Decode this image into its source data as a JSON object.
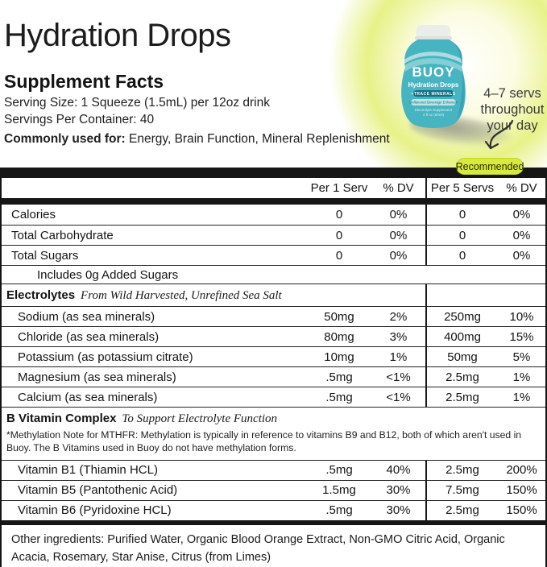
{
  "header": {
    "title": "Hydration Drops",
    "facts_heading": "Supplement Facts",
    "serving_size": "Serving Size: 1 Squeeze (1.5mL) per 12oz drink",
    "servings_per_container": "Servings Per Container: 40",
    "commonly_used_label": "Commonly used for:",
    "commonly_used_value": " Energy, Brain Function, Mineral Replenishment"
  },
  "product_image": {
    "brand": "BUOY",
    "name": "Hydration Drops",
    "tagline": "+TRACE MINERALS",
    "pill": "Unflavored Beverage Enhancer",
    "line1": "Electrolyte Supplement",
    "line2": "2 fl oz (60ml)"
  },
  "annotation": {
    "line1": "4–7 servs",
    "line2": "throughout",
    "line3": "your day",
    "badge": "Recommended"
  },
  "table": {
    "columns": [
      "Per 1 Serv",
      "% DV",
      "Per 5 Servs",
      "% DV"
    ],
    "rows": [
      {
        "kind": "item",
        "indent": 1,
        "name": "Calories",
        "v1": "0",
        "dv1": "0%",
        "v5": "0",
        "dv5": "0%"
      },
      {
        "kind": "item",
        "indent": 1,
        "name": "Total Carbohydrate",
        "v1": "0",
        "dv1": "0%",
        "v5": "0",
        "dv5": "0%"
      },
      {
        "kind": "item",
        "indent": 1,
        "name": "Total Sugars",
        "v1": "0",
        "dv1": "0%",
        "v5": "0",
        "dv5": "0%"
      },
      {
        "kind": "sub",
        "indent": 3,
        "name": "Includes 0g Added Sugars"
      },
      {
        "kind": "section",
        "name": "Electrolytes",
        "note": "From Wild Harvested, Unrefined Sea Salt",
        "divider": true
      },
      {
        "kind": "item",
        "indent": 2,
        "name": "Sodium (as sea minerals)",
        "v1": "50mg",
        "dv1": "2%",
        "v5": "250mg",
        "dv5": "10%"
      },
      {
        "kind": "item",
        "indent": 2,
        "name": "Chloride (as sea minerals)",
        "v1": "80mg",
        "dv1": "3%",
        "v5": "400mg",
        "dv5": "15%"
      },
      {
        "kind": "item",
        "indent": 2,
        "name": "Potassium (as potassium citrate)",
        "v1": "10mg",
        "dv1": "1%",
        "v5": "50mg",
        "dv5": "5%"
      },
      {
        "kind": "item",
        "indent": 2,
        "name": "Magnesium (as sea minerals)",
        "v1": ".5mg",
        "dv1": "<1%",
        "v5": "2.5mg",
        "dv5": "1%"
      },
      {
        "kind": "item",
        "indent": 2,
        "name": "Calcium (as sea minerals)",
        "v1": ".5mg",
        "dv1": "<1%",
        "v5": "2.5mg",
        "dv5": "1%"
      },
      {
        "kind": "section",
        "name": "B Vitamin Complex",
        "note": "To Support Electrolyte Function",
        "divider": false,
        "footnote": "*Methylation Note for MTHFR: Methylation is typically in reference to vitamins B9 and B12, both of which aren't used in Buoy. The B Vitamins used in Buoy do not have methylation forms."
      },
      {
        "kind": "item",
        "indent": 2,
        "name": "Vitamin B1 (Thiamin HCL)",
        "v1": ".5mg",
        "dv1": "40%",
        "v5": "2.5mg",
        "dv5": "200%"
      },
      {
        "kind": "item",
        "indent": 2,
        "name": "Vitamin B5 (Pantothenic Acid)",
        "v1": "1.5mg",
        "dv1": "30%",
        "v5": "7.5mg",
        "dv5": "150%"
      },
      {
        "kind": "item",
        "indent": 2,
        "name": "Vitamin B6 (Pyridoxine HCL)",
        "v1": ".5mg",
        "dv1": "30%",
        "v5": "2.5mg",
        "dv5": "150%"
      }
    ]
  },
  "other_ingredients": "Other ingredients: Purified Water, Organic Blood Orange Extract, Non-GMO Citric Acid, Organic Acacia, Rosemary, Star Anise, Citrus (from Limes)",
  "colors": {
    "badge_bg": "#d9e93d",
    "glow_green": "#e7f288",
    "bottle_teal": "#47b4c2",
    "bar_black": "#161616"
  }
}
